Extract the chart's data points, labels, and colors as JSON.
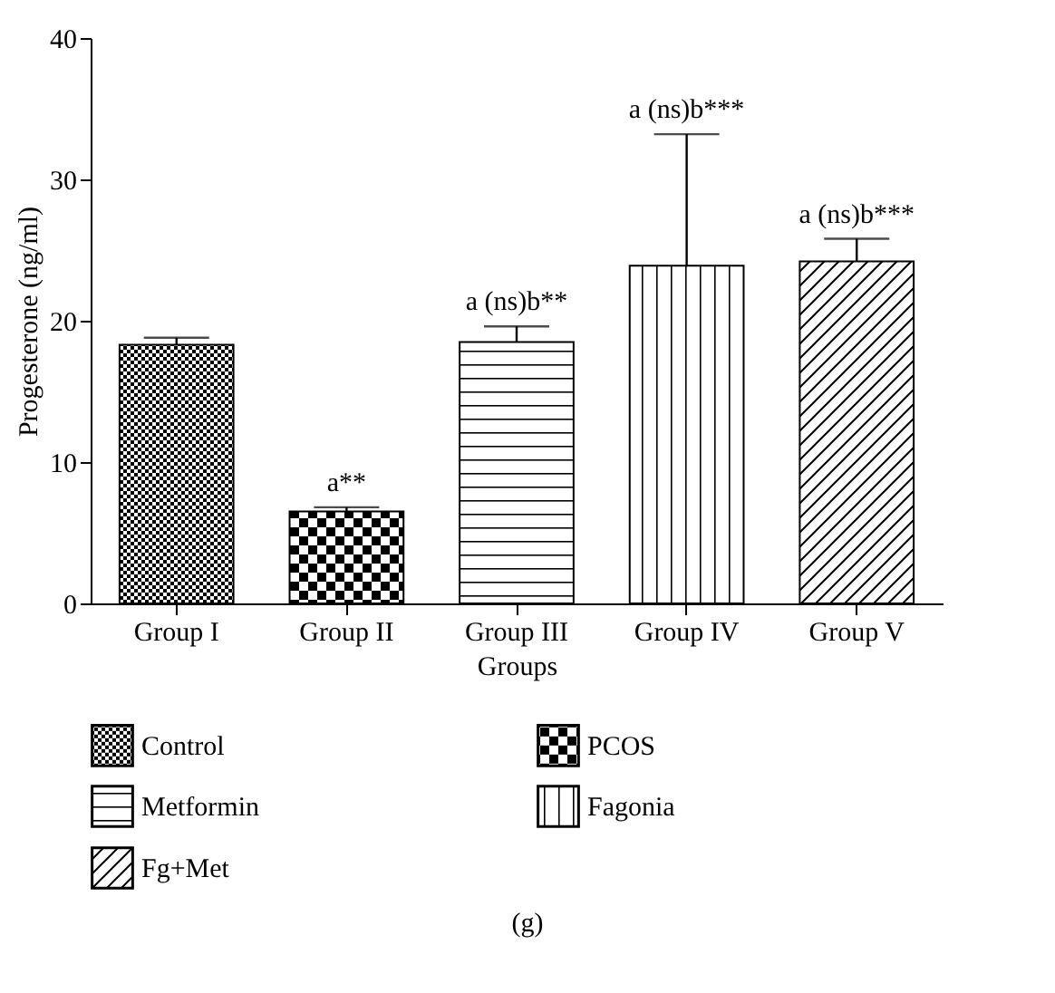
{
  "chart_data": {
    "type": "bar",
    "xlabel": "Groups",
    "ylabel": "Progesterone (ng/ml)",
    "categories": [
      "Group I",
      "Group II",
      "Group III",
      "Group IV",
      "Group V"
    ],
    "series": [
      {
        "name": "Control",
        "color": "#000000",
        "values": [
          18.3,
          null,
          null,
          null,
          null
        ],
        "errors": [
          0.5,
          null,
          null,
          null,
          null
        ]
      },
      {
        "name": "PCOS",
        "color": "#000000",
        "values": [
          null,
          6.5,
          null,
          null,
          null
        ],
        "errors": [
          null,
          0.3,
          null,
          null,
          null
        ]
      },
      {
        "name": "Metformin",
        "color": "#000000",
        "values": [
          null,
          null,
          18.5,
          null,
          null
        ],
        "errors": [
          null,
          null,
          1.1,
          null,
          null
        ]
      },
      {
        "name": "Fagonia",
        "color": "#000000",
        "values": [
          null,
          null,
          null,
          23.9,
          null
        ],
        "errors": [
          null,
          null,
          null,
          9.3,
          null
        ]
      },
      {
        "name": "Fg+Met",
        "color": "#000000",
        "values": [
          null,
          null,
          null,
          null,
          24.2
        ],
        "errors": [
          null,
          null,
          null,
          null,
          1.6
        ]
      }
    ],
    "ylim": [
      0,
      40
    ],
    "yticks": [
      0,
      10,
      20,
      30,
      40
    ],
    "grid": false,
    "legend": "bottom",
    "annotations": [
      {
        "text": "a**",
        "x": "Group II",
        "y": 6.8
      },
      {
        "text": "a (ns)b**",
        "x": "Group III",
        "y": 19.6
      },
      {
        "text": "a (ns)b***",
        "x": "Group IV",
        "y": 33.2
      },
      {
        "text": "a (ns)b***",
        "x": "Group V",
        "y": 25.8
      },
      "(g)"
    ]
  }
}
